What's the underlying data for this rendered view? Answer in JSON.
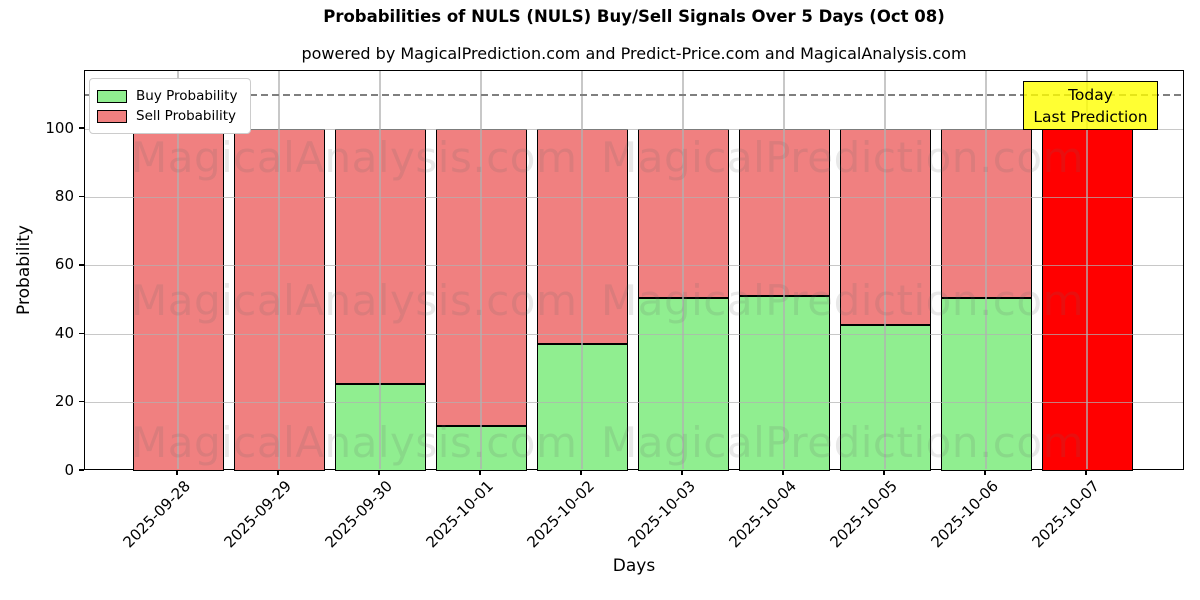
{
  "title": "Probabilities of NULS (NULS) Buy/Sell Signals Over 5 Days (Oct 08)",
  "subtitle": "powered by MagicalPrediction.com and Predict-Price.com and MagicalAnalysis.com",
  "watermarks": {
    "left": "MagicalAnalysis.com",
    "right": "MagicalPrediction.com"
  },
  "legend": [
    {
      "label": "Buy Probability",
      "color": "#90EE90"
    },
    {
      "label": "Sell Probability",
      "color": "#F08080"
    }
  ],
  "annotation": {
    "line1": "Today",
    "line2": "Last Prediction",
    "bg_color": "#FFFF00"
  },
  "axes": {
    "xlabel": "Days",
    "ylabel": "Probability",
    "yticks": [
      0,
      20,
      40,
      60,
      80,
      100
    ],
    "ylim": [
      0,
      117
    ],
    "dashed_line_y": 110,
    "grid": true,
    "legend_position": "upper-left"
  },
  "colors": {
    "buy": "#90EE90",
    "sell": "#F08080",
    "today": "#FF0000",
    "bar_edge": "#000000",
    "grid": "#b0b0b0",
    "dashed_line": "#7f7f7f"
  },
  "chart_data": {
    "type": "bar",
    "stacked": true,
    "title": "Probabilities of NULS (NULS) Buy/Sell Signals Over 5 Days (Oct 08)",
    "xlabel": "Days",
    "ylabel": "Probability",
    "ylim": [
      0,
      117
    ],
    "grid": true,
    "legend_position": "upper-left",
    "categories": [
      "2025-09-28",
      "2025-09-29",
      "2025-09-30",
      "2025-10-01",
      "2025-10-02",
      "2025-10-03",
      "2025-10-04",
      "2025-10-05",
      "2025-10-06",
      "2025-10-07"
    ],
    "series": [
      {
        "name": "Buy Probability",
        "color": "#90EE90",
        "values": [
          0,
          0,
          25.4,
          13.3,
          37.2,
          50.7,
          51.2,
          42.7,
          50.7,
          0
        ]
      },
      {
        "name": "Sell Probability",
        "color": "#F08080",
        "values": [
          100,
          100,
          74.6,
          86.7,
          62.8,
          49.3,
          48.8,
          57.3,
          49.3,
          0
        ]
      },
      {
        "name": "Today Last Prediction",
        "color": "#FF0000",
        "values": [
          0,
          0,
          0,
          0,
          0,
          0,
          0,
          0,
          0,
          100
        ]
      }
    ]
  }
}
